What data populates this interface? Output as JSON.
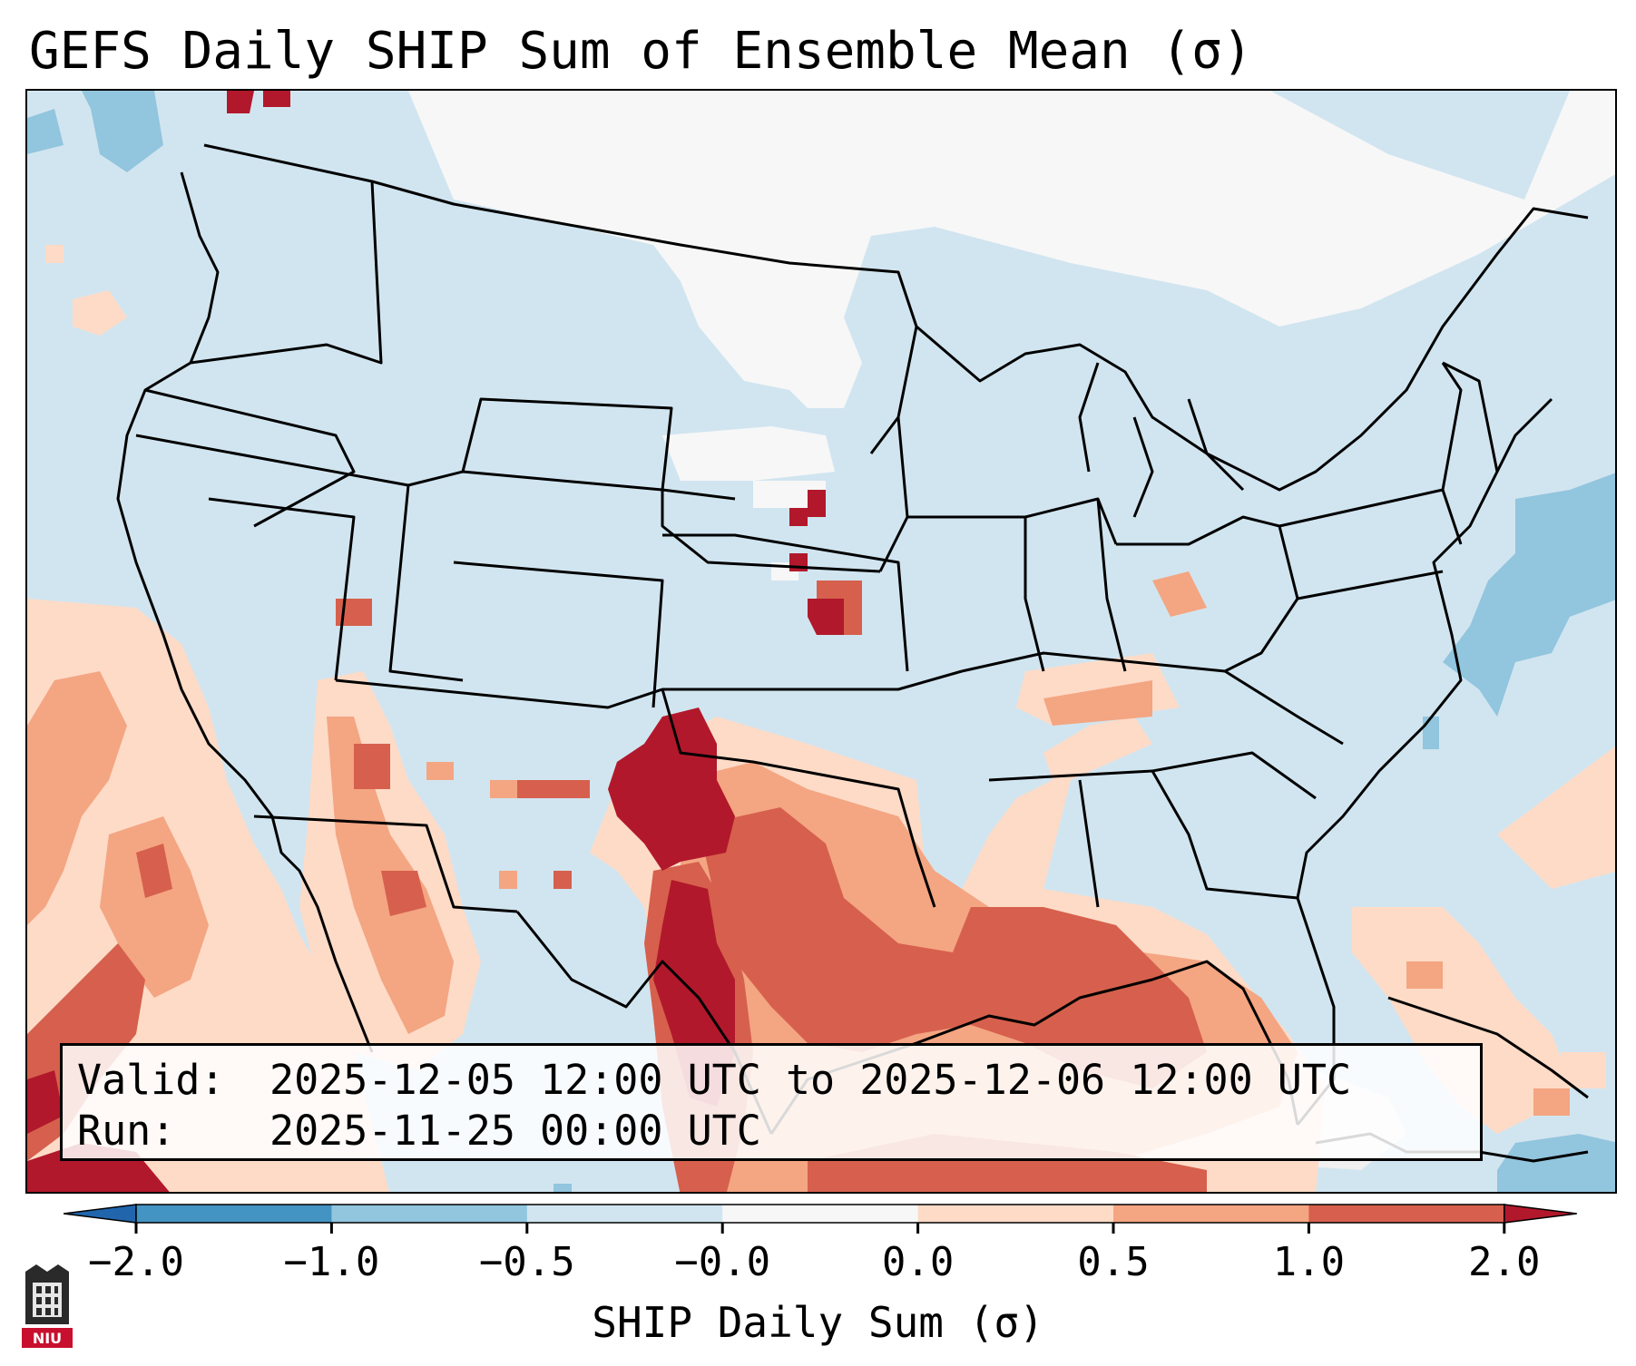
{
  "title": "GEFS Daily SHIP Sum of Ensemble Mean (σ)",
  "info": {
    "valid_key": "Valid:",
    "valid_value": "2025-12-05 12:00 UTC to 2025-12-06 12:00 UTC",
    "run_key": "Run:",
    "run_value": "2025-11-25 00:00 UTC"
  },
  "colorbar": {
    "label": "SHIP Daily Sum (σ)",
    "ticks": [
      "−2.0",
      "−1.0",
      "−0.5",
      "−0.0",
      "0.0",
      "0.5",
      "1.0",
      "2.0"
    ],
    "bins": [
      {
        "name": "below -2.0",
        "color": "#2166ac"
      },
      {
        "name": "-2.0 to -1.0",
        "color": "#4393c3"
      },
      {
        "name": "-1.0 to -0.5",
        "color": "#92c5de"
      },
      {
        "name": "-0.5 to -0.0",
        "color": "#d1e5f0"
      },
      {
        "name": "-0.0 to 0.0",
        "color": "#f7f7f7"
      },
      {
        "name": "0.0 to 0.5",
        "color": "#fddbc7"
      },
      {
        "name": "0.5 to 1.0",
        "color": "#f4a582"
      },
      {
        "name": "1.0 to 2.0",
        "color": "#d6604d"
      },
      {
        "name": "above 2.0",
        "color": "#b2182b"
      }
    ]
  },
  "logo": {
    "text": "NIU",
    "color": "#c8102e"
  }
}
